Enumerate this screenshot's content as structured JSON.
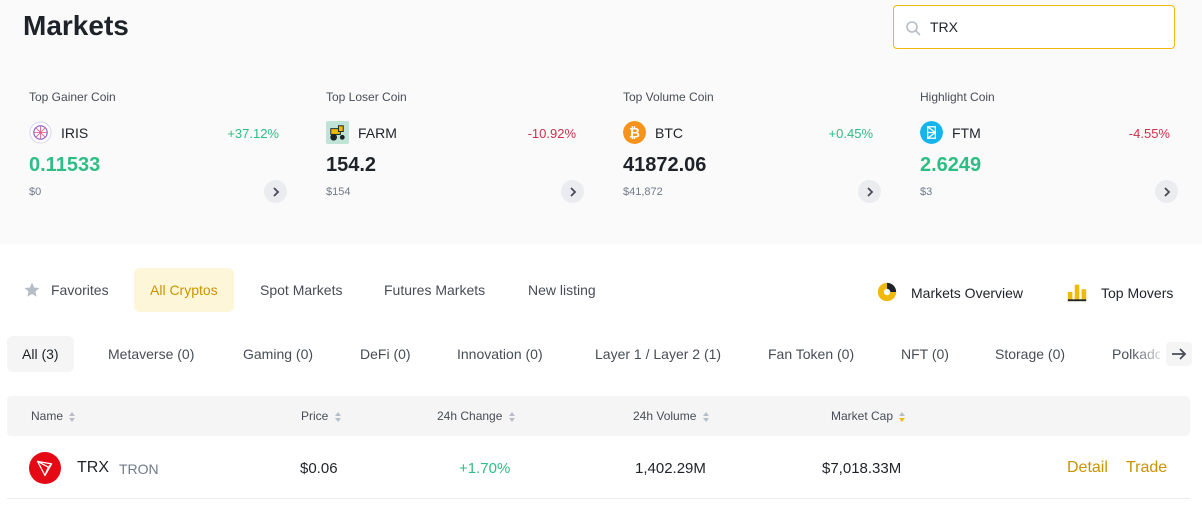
{
  "page": {
    "title": "Markets"
  },
  "search": {
    "value": "TRX",
    "icon": "search-icon"
  },
  "highlights": [
    {
      "label": "Top Gainer Coin",
      "symbol": "IRIS",
      "change": "+37.12%",
      "price": "0.11533",
      "fiat": "$0",
      "icon": "iris-icon"
    },
    {
      "label": "Top Loser Coin",
      "symbol": "FARM",
      "change": "-10.92%",
      "price": "154.2",
      "fiat": "$154",
      "icon": "farm-icon"
    },
    {
      "label": "Top Volume Coin",
      "symbol": "BTC",
      "change": "+0.45%",
      "price": "41872.06",
      "fiat": "$41,872",
      "icon": "btc-icon"
    },
    {
      "label": "Highlight Coin",
      "symbol": "FTM",
      "change": "-4.55%",
      "price": "2.6249",
      "fiat": "$3",
      "icon": "ftm-icon"
    }
  ],
  "tabs": [
    {
      "label": "Favorites",
      "icon": "star-icon"
    },
    {
      "label": "All Cryptos",
      "active": true
    },
    {
      "label": "Spot Markets"
    },
    {
      "label": "Futures Markets"
    },
    {
      "label": "New listing"
    }
  ],
  "right_links": [
    {
      "label": "Markets Overview",
      "icon": "pie-chart-icon"
    },
    {
      "label": "Top Movers",
      "icon": "bar-chart-icon"
    }
  ],
  "categories": [
    {
      "label": "All (3)",
      "active": true
    },
    {
      "label": "Metaverse (0)"
    },
    {
      "label": "Gaming (0)"
    },
    {
      "label": "DeFi (0)"
    },
    {
      "label": "Innovation (0)"
    },
    {
      "label": "Layer 1 / Layer 2 (1)"
    },
    {
      "label": "Fan Token (0)"
    },
    {
      "label": "NFT (0)"
    },
    {
      "label": "Storage (0)"
    },
    {
      "label": "Polkadot"
    }
  ],
  "table": {
    "columns": [
      "Name",
      "Price",
      "24h Change",
      "24h Volume",
      "Market Cap"
    ],
    "rows": [
      {
        "symbol": "TRX",
        "name": "TRON",
        "price": "$0.06",
        "change": "+1.70%",
        "volume": "1,402.29M",
        "market_cap": "$7,018.33M",
        "detail": "Detail",
        "trade": "Trade",
        "icon": "tron-icon"
      }
    ]
  },
  "colors": {
    "accent": "#f0b90b",
    "gold_text": "#c99400",
    "up": "#0ecb81",
    "down": "#cf304a"
  }
}
